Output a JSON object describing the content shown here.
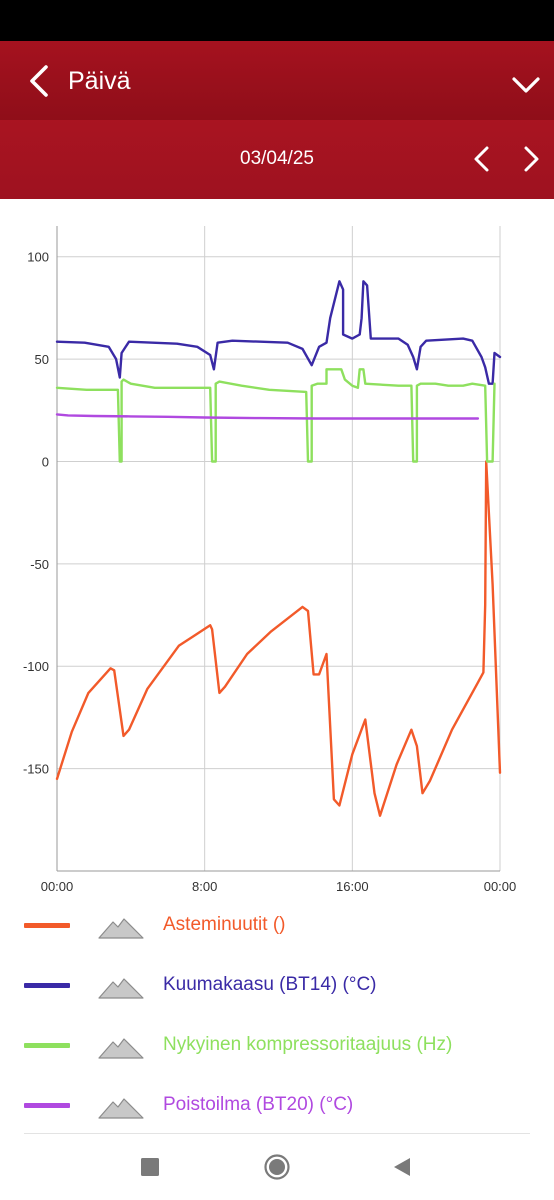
{
  "header": {
    "title": "Päivä",
    "back_icon": "chevron-left-icon",
    "menu_icon": "chevron-down-icon"
  },
  "date_nav": {
    "date": "03/04/25",
    "prev_icon": "chevron-left-icon",
    "next_icon": "chevron-right-icon"
  },
  "colors": {
    "header": "#a5121f",
    "asteminuutit": "#f25a2a",
    "kuumakaasu": "#3a2aa6",
    "kompressori": "#8ee05e",
    "poistoilma": "#b049e0",
    "grid": "#cfcfcf"
  },
  "legend": [
    {
      "label": "Asteminuutit ()",
      "color": "#f25a2a"
    },
    {
      "label": "Kuumakaasu (BT14) (°C)",
      "color": "#3a2aa6"
    },
    {
      "label": "Nykyinen kompressoritaajuus (Hz)",
      "color": "#8ee05e"
    },
    {
      "label": "Poistoilma (BT20) (°C)",
      "color": "#b049e0"
    }
  ],
  "chart_data": {
    "type": "line",
    "title": "",
    "xlabel": "",
    "ylabel": "",
    "x_unit": "hours",
    "xlim": [
      0,
      24
    ],
    "ylim": [
      -200,
      115
    ],
    "yticks": [
      -150,
      -100,
      -50,
      0,
      50,
      100
    ],
    "xticks": [
      {
        "value": 0,
        "label": "00:00"
      },
      {
        "value": 8,
        "label": "8:00"
      },
      {
        "value": 16,
        "label": "16:00"
      },
      {
        "value": 24,
        "label": "00:00"
      }
    ],
    "grid": true,
    "legend_position": "bottom",
    "series": [
      {
        "name": "Asteminuutit ()",
        "color": "#f25a2a",
        "points": [
          [
            0,
            -155
          ],
          [
            0.8,
            -132
          ],
          [
            1.7,
            -113
          ],
          [
            2.9,
            -101
          ],
          [
            3.1,
            -102
          ],
          [
            3.6,
            -134
          ],
          [
            3.9,
            -131
          ],
          [
            4.9,
            -111
          ],
          [
            6.6,
            -90
          ],
          [
            8.3,
            -80
          ],
          [
            8.4,
            -82
          ],
          [
            8.8,
            -113
          ],
          [
            9.1,
            -110
          ],
          [
            10.3,
            -94
          ],
          [
            11.6,
            -83
          ],
          [
            13.3,
            -71
          ],
          [
            13.6,
            -73
          ],
          [
            13.9,
            -104
          ],
          [
            14.2,
            -104
          ],
          [
            14.6,
            -94
          ],
          [
            15.0,
            -165
          ],
          [
            15.3,
            -168
          ],
          [
            16.0,
            -143
          ],
          [
            16.7,
            -126
          ],
          [
            17.2,
            -162
          ],
          [
            17.5,
            -173
          ],
          [
            18.4,
            -148
          ],
          [
            19.2,
            -131
          ],
          [
            19.5,
            -139
          ],
          [
            19.8,
            -162
          ],
          [
            20.2,
            -156
          ],
          [
            21.4,
            -131
          ],
          [
            22.8,
            -108
          ],
          [
            23.1,
            -103
          ],
          [
            23.2,
            -70
          ],
          [
            23.25,
            0
          ],
          [
            23.6,
            -60
          ],
          [
            24.0,
            -152
          ]
        ]
      },
      {
        "name": "Kuumakaasu (BT14) (°C)",
        "color": "#3a2aa6",
        "points": [
          [
            0,
            58.5
          ],
          [
            1.5,
            58
          ],
          [
            2.8,
            56
          ],
          [
            3.2,
            50
          ],
          [
            3.4,
            41
          ],
          [
            3.5,
            53
          ],
          [
            3.9,
            58.5
          ],
          [
            6.5,
            57.5
          ],
          [
            7.6,
            56
          ],
          [
            8.3,
            52
          ],
          [
            8.5,
            45
          ],
          [
            8.7,
            58
          ],
          [
            9.5,
            59
          ],
          [
            12.5,
            58
          ],
          [
            13.3,
            55
          ],
          [
            13.8,
            47
          ],
          [
            14.2,
            56
          ],
          [
            14.6,
            58
          ],
          [
            14.8,
            70
          ],
          [
            15.3,
            88
          ],
          [
            15.5,
            84
          ],
          [
            15.5,
            62
          ],
          [
            16.0,
            60
          ],
          [
            16.4,
            62
          ],
          [
            16.5,
            70
          ],
          [
            16.6,
            88
          ],
          [
            16.8,
            86
          ],
          [
            17.0,
            60
          ],
          [
            18.5,
            60
          ],
          [
            19.0,
            57
          ],
          [
            19.3,
            51
          ],
          [
            19.5,
            45
          ],
          [
            19.7,
            56
          ],
          [
            20.0,
            59
          ],
          [
            22.0,
            60
          ],
          [
            22.5,
            59
          ],
          [
            23.0,
            51
          ],
          [
            23.2,
            46
          ],
          [
            23.4,
            38
          ],
          [
            23.6,
            38
          ],
          [
            23.7,
            53
          ],
          [
            24.0,
            51
          ]
        ]
      },
      {
        "name": "Nykyinen kompressoritaajuus (Hz)",
        "color": "#8ee05e",
        "points": [
          [
            0,
            36
          ],
          [
            1.6,
            35
          ],
          [
            3.3,
            35
          ],
          [
            3.4,
            0
          ],
          [
            3.5,
            0
          ],
          [
            3.5,
            39
          ],
          [
            3.6,
            40
          ],
          [
            4.0,
            38
          ],
          [
            5.3,
            36
          ],
          [
            8.3,
            36
          ],
          [
            8.4,
            0
          ],
          [
            8.6,
            0
          ],
          [
            8.6,
            38
          ],
          [
            8.8,
            39
          ],
          [
            10.0,
            37
          ],
          [
            11.5,
            35
          ],
          [
            13.5,
            34
          ],
          [
            13.6,
            0
          ],
          [
            13.8,
            0
          ],
          [
            13.8,
            37
          ],
          [
            14.1,
            38
          ],
          [
            14.6,
            38
          ],
          [
            14.6,
            45
          ],
          [
            15.4,
            45
          ],
          [
            15.6,
            40
          ],
          [
            16.0,
            37
          ],
          [
            16.3,
            36
          ],
          [
            16.4,
            45
          ],
          [
            16.6,
            45
          ],
          [
            16.7,
            38
          ],
          [
            18.5,
            37
          ],
          [
            19.2,
            37
          ],
          [
            19.3,
            0
          ],
          [
            19.5,
            0
          ],
          [
            19.5,
            37
          ],
          [
            19.7,
            38
          ],
          [
            20.5,
            38
          ],
          [
            21.2,
            37
          ],
          [
            22.0,
            37
          ],
          [
            22.5,
            38
          ],
          [
            23.2,
            37
          ],
          [
            23.3,
            0
          ],
          [
            23.6,
            0
          ],
          [
            23.7,
            38
          ]
        ]
      },
      {
        "name": "Poistoilma (BT20) (°C)",
        "color": "#b049e0",
        "points": [
          [
            0,
            23
          ],
          [
            0.6,
            22.5
          ],
          [
            2.0,
            22.2
          ],
          [
            4.0,
            22
          ],
          [
            6.0,
            21.8
          ],
          [
            8.0,
            21.5
          ],
          [
            11.0,
            21.2
          ],
          [
            14.0,
            21
          ],
          [
            17.0,
            21
          ],
          [
            20.0,
            21
          ],
          [
            22.0,
            21
          ],
          [
            22.8,
            21
          ]
        ]
      }
    ]
  },
  "nav_bar": {
    "recents_icon": "square-icon",
    "home_icon": "circle-home-icon",
    "back_icon": "triangle-back-icon"
  }
}
